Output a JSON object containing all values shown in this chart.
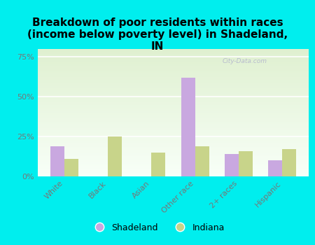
{
  "title": "Breakdown of poor residents within races\n(income below poverty level) in Shadeland,\nIN",
  "categories": [
    "White",
    "Black",
    "Asian",
    "Other race",
    "2+ races",
    "Hispanic"
  ],
  "shadeland_values": [
    19,
    0,
    0,
    62,
    14,
    10
  ],
  "indiana_values": [
    11,
    25,
    15,
    19,
    16,
    17
  ],
  "shadeland_color": "#c9a8e0",
  "indiana_color": "#c8d48a",
  "background_color": "#00eeee",
  "plot_bg_top_color": "#dff0d0",
  "plot_bg_bottom_color": "#f8fff8",
  "yticks": [
    0,
    25,
    50,
    75
  ],
  "ylim": [
    0,
    80
  ],
  "bar_width": 0.32,
  "title_fontsize": 11,
  "tick_fontsize": 8,
  "legend_fontsize": 9,
  "watermark": "City-Data.com",
  "yticklabel_color": "#777777",
  "xticklabel_color": "#777777"
}
